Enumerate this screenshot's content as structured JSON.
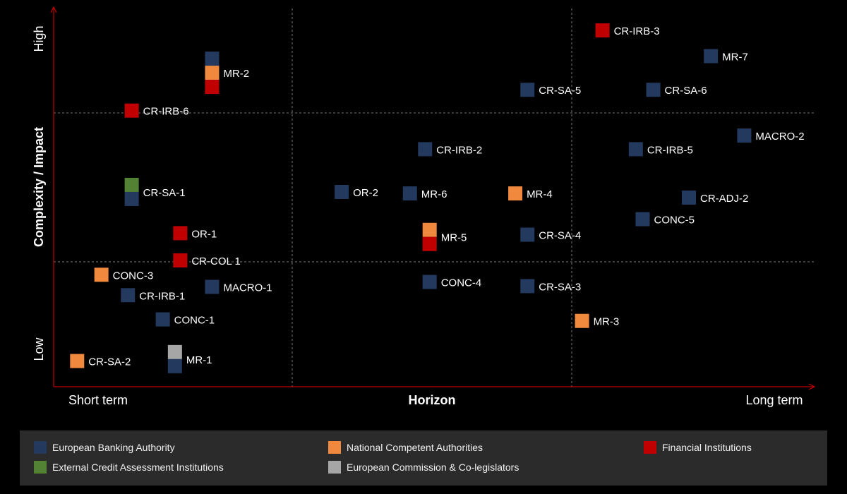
{
  "chart_data": {
    "type": "scatter",
    "title": "",
    "xlabel": "Horizon",
    "ylabel": "Complexity / Impact",
    "x_tick_labels": [
      "Short term",
      "Long term"
    ],
    "y_tick_labels": [
      "Low",
      "High"
    ],
    "xlim": [
      0,
      100
    ],
    "ylim": [
      0,
      100
    ],
    "grid": "dashed quadrant lines",
    "legend_position": "bottom",
    "colors": {
      "eba": "#23395d",
      "nca": "#f0883e",
      "fi": "#c00000",
      "ecai": "#548235",
      "ec": "#a6a6a6",
      "axis": "#c00000",
      "grid": "#777777"
    },
    "series": [
      {
        "name": "European Banking Authority",
        "key": "eba"
      },
      {
        "name": "National Competent Authorities",
        "key": "nca"
      },
      {
        "name": "Financial Institutions",
        "key": "fi"
      },
      {
        "name": "External Credit Assessment Institutions",
        "key": "ecai"
      },
      {
        "name": "European Commission & Co-legislators",
        "key": "ec"
      }
    ],
    "points": [
      {
        "label": "CR-IRB-3",
        "x": 72.4,
        "y": 94.2,
        "stack": [
          "fi"
        ]
      },
      {
        "label": "MR-7",
        "x": 86.7,
        "y": 87.4,
        "stack": [
          "eba"
        ]
      },
      {
        "label": "MR-2",
        "x": 20.9,
        "y": 83.0,
        "stack": [
          "eba",
          "nca",
          "fi"
        ]
      },
      {
        "label": "CR-SA-5",
        "x": 62.5,
        "y": 78.5,
        "stack": [
          "eba"
        ]
      },
      {
        "label": "CR-SA-6",
        "x": 79.1,
        "y": 78.5,
        "stack": [
          "eba"
        ]
      },
      {
        "label": "CR-IRB-6",
        "x": 10.3,
        "y": 73.0,
        "stack": [
          "fi"
        ]
      },
      {
        "label": "MACRO-2",
        "x": 91.1,
        "y": 66.4,
        "stack": [
          "eba"
        ]
      },
      {
        "label": "CR-IRB-2",
        "x": 49.0,
        "y": 62.8,
        "stack": [
          "eba"
        ]
      },
      {
        "label": "CR-IRB-5",
        "x": 76.8,
        "y": 62.8,
        "stack": [
          "eba"
        ]
      },
      {
        "label": "CR-SA-1",
        "x": 10.3,
        "y": 51.5,
        "stack": [
          "ecai",
          "eba"
        ]
      },
      {
        "label": "OR-2",
        "x": 38.0,
        "y": 51.5,
        "stack": [
          "eba"
        ]
      },
      {
        "label": "MR-6",
        "x": 47.0,
        "y": 51.1,
        "stack": [
          "eba"
        ]
      },
      {
        "label": "MR-4",
        "x": 60.9,
        "y": 51.1,
        "stack": [
          "nca"
        ]
      },
      {
        "label": "CR-ADJ-2",
        "x": 83.8,
        "y": 50.0,
        "stack": [
          "eba"
        ]
      },
      {
        "label": "CONC-5",
        "x": 77.7,
        "y": 44.3,
        "stack": [
          "eba"
        ]
      },
      {
        "label": "OR-1",
        "x": 16.7,
        "y": 40.6,
        "stack": [
          "fi"
        ]
      },
      {
        "label": "MR-5",
        "x": 49.6,
        "y": 39.6,
        "stack": [
          "nca",
          "fi"
        ]
      },
      {
        "label": "CR-SA-4",
        "x": 62.5,
        "y": 40.2,
        "stack": [
          "eba"
        ]
      },
      {
        "label": "CR-COL 1",
        "x": 16.7,
        "y": 33.4,
        "stack": [
          "fi"
        ]
      },
      {
        "label": "CONC-3",
        "x": 6.3,
        "y": 29.6,
        "stack": [
          "nca"
        ]
      },
      {
        "label": "MACRO-1",
        "x": 20.9,
        "y": 26.4,
        "stack": [
          "eba"
        ]
      },
      {
        "label": "CONC-4",
        "x": 49.6,
        "y": 27.7,
        "stack": [
          "eba"
        ]
      },
      {
        "label": "CR-SA-3",
        "x": 62.5,
        "y": 26.6,
        "stack": [
          "eba"
        ]
      },
      {
        "label": "CR-IRB-1",
        "x": 9.8,
        "y": 24.2,
        "stack": [
          "eba"
        ]
      },
      {
        "label": "CONC-1",
        "x": 14.4,
        "y": 17.8,
        "stack": [
          "eba"
        ]
      },
      {
        "label": "MR-3",
        "x": 69.7,
        "y": 17.4,
        "stack": [
          "nca"
        ]
      },
      {
        "label": "MR-1",
        "x": 16.0,
        "y": 7.3,
        "stack": [
          "ec",
          "eba"
        ]
      },
      {
        "label": "CR-SA-2",
        "x": 3.1,
        "y": 6.8,
        "stack": [
          "nca"
        ]
      }
    ]
  }
}
